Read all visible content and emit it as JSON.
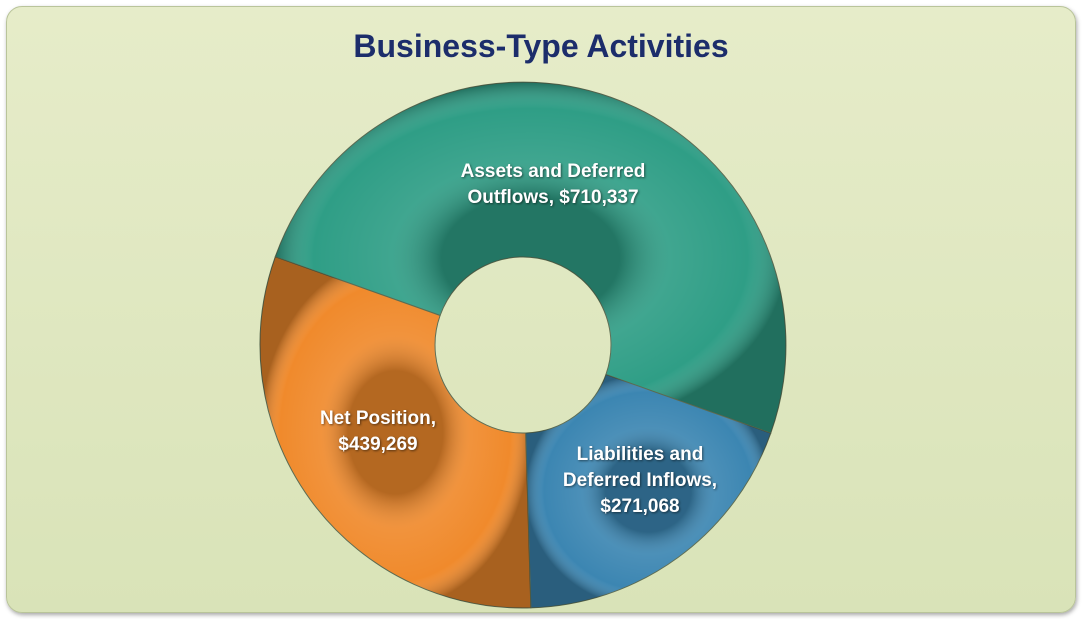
{
  "chart_data": {
    "type": "donut",
    "title": "Business-Type Activities",
    "categories": [
      "Assets and Deferred Outflows,",
      "Liabilities and Deferred Inflows,",
      "Net Position,"
    ],
    "values": [
      710337,
      271068,
      439269
    ],
    "value_labels": [
      "$710,337",
      "$271,068",
      "$439,269"
    ],
    "colors": [
      "#2f9e86",
      "#3c86b2",
      "#f08a2c"
    ]
  }
}
